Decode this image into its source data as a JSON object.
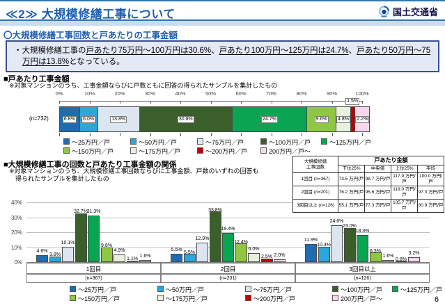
{
  "header": {
    "title": "≪2≫ 大規模修繕工事について",
    "ministry": "国土交通省"
  },
  "subtitle": "〇大規模修繕工事回数と戸あたりの工事金額",
  "summary": {
    "parts": [
      {
        "t": "・大規模修繕工事の",
        "u": false
      },
      {
        "t": "戸あたり75万円～100万円は30.6%",
        "u": true
      },
      {
        "t": "、",
        "u": false
      },
      {
        "t": "戸あたり100万円～125万円は24.7%",
        "u": true
      },
      {
        "t": "、",
        "u": false
      },
      {
        "t": "戸あたり50万円～75万円は13.8%",
        "u": true
      },
      {
        "t": "となっている。",
        "u": false
      }
    ]
  },
  "section1": {
    "title": "■戸あたり工事金額",
    "note": "※対象マンションのうち、工事金額ならびに戸数ともに回答の得られたサンプルを集計したもの"
  },
  "section2": {
    "title": "■大規模修繕工事の回数と戸あたり工事金額の関係",
    "note": "※対象マンションのうち、大規模修繕工事回数ならびに工事金額、戸数のいずれの回答も得られたサンプルを集計したもの"
  },
  "categories": [
    "～25万円／戸",
    "～50万円／戸",
    "～75万円／戸",
    "～100万円／戸",
    "～125万円／戸",
    "～150万円／戸",
    "～175万円／戸",
    "～200万円／戸",
    "200万円／戸～"
  ],
  "colors": [
    "#1f6cb5",
    "#2ba6df",
    "#dce6f1",
    "#3a5f2b",
    "#09a552",
    "#8fc642",
    "#e9f0dc",
    "#c00000",
    "#f7d6ee"
  ],
  "chart_data": [
    {
      "type": "stacked-bar-horizontal",
      "title": "戸あたり工事金額",
      "n_label": "(n=732)",
      "categories": [
        "～25万円／戸",
        "～50万円／戸",
        "～75万円／戸",
        "～100万円／戸",
        "～125万円／戸",
        "～150万円／戸",
        "～175万円／戸",
        "～200万円／戸",
        "200万円／戸～"
      ],
      "values": [
        6.8,
        6.0,
        13.8,
        30.6,
        24.7,
        9.6,
        4.8,
        1.5,
        2.2
      ],
      "outside_label_index": 7,
      "axis": {
        "range": [
          0,
          100
        ],
        "ticks": [
          "0%",
          "10%",
          "20%",
          "30%",
          "40%",
          "50%",
          "60%",
          "70%",
          "80%",
          "90%",
          "100%"
        ]
      }
    },
    {
      "type": "bar",
      "ylim": [
        0,
        40
      ],
      "yticks": [
        "0%",
        "10%",
        "20%",
        "30%",
        "40%"
      ],
      "series_labels": [
        "～25万円／戸",
        "～50万円／戸",
        "～75万円／戸",
        "～100万円／戸",
        "～125万円／戸",
        "～150万円／戸",
        "～175万円／戸",
        "～200万円／戸",
        "200万円／戸～"
      ],
      "groups": [
        {
          "label": "1回目",
          "n": "(n=367)",
          "values": [
            4.6,
            3.8,
            10.1,
            32.7,
            31.3,
            9.8,
            4.9,
            1.1,
            1.6
          ]
        },
        {
          "label": "2回目",
          "n": "(n=201)",
          "values": [
            5.5,
            5.5,
            12.9,
            33.8,
            19.4,
            12.4,
            6.0,
            2.5,
            2.0
          ]
        },
        {
          "label": "3回目以上",
          "n": "(n=126)",
          "values": [
            11.9,
            10.3,
            24.6,
            23.0,
            18.3,
            6.3,
            1.6,
            0.8,
            3.2
          ]
        }
      ]
    }
  ],
  "table": {
    "corner": "大規模修繕\n工事回数",
    "group_header": "戸あたり金額",
    "columns": [
      "下位25%",
      "中央値",
      "上位25%",
      "平均"
    ],
    "rows": [
      {
        "label": "1回目 (n=367)",
        "values": [
          "73.5 万円/戸",
          "98.7 万円/戸",
          "117.9 万円/戸",
          "100.0 万円/戸"
        ]
      },
      {
        "label": "2回目 (n=201)",
        "values": [
          "76.2 万円/戸",
          "95.6 万円/戸",
          "119.0 万円/戸",
          "97.3 万円/戸"
        ]
      },
      {
        "label": "3回目以上 (n=126)",
        "values": [
          "55.1 万円/戸",
          "77.3 万円/戸",
          "105.7 万円/戸",
          "80.9 万円/戸"
        ]
      }
    ]
  },
  "page_number": "6"
}
